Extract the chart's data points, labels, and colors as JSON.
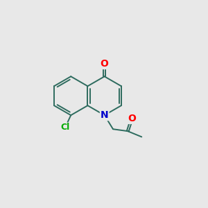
{
  "bg_color": "#e8e8e8",
  "bond_color": "#2d6b5e",
  "bond_width": 1.4,
  "atom_colors": {
    "O": "#ff0000",
    "N": "#0000cc",
    "Cl": "#00aa00",
    "C": "#000000"
  },
  "font_size_atom": 10,
  "font_size_cl": 9,
  "a": 0.95,
  "smx": 4.2,
  "smy": 5.4
}
